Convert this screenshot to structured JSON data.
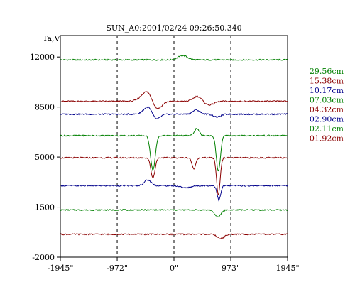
{
  "chart_data": {
    "type": "line",
    "title": "SUN_A0:2001/02/24 09:26:50.340",
    "ylabel": "Ta,V",
    "xlabel": "",
    "xlim": [
      -1945,
      1945
    ],
    "ylim": [
      -2000,
      13500
    ],
    "x_ticks": [
      -1945,
      -972,
      0,
      973,
      1945
    ],
    "x_tick_labels": [
      "-1945\"",
      "-972\"",
      "0\"",
      "973\"",
      "1945\""
    ],
    "y_ticks": [
      12000,
      8500,
      5000,
      1500,
      -2000
    ],
    "y_tick_labels": [
      "12000",
      "8500",
      "5000",
      "1500",
      "-2000"
    ],
    "vertical_guides": [
      -972,
      0,
      973
    ],
    "grid": false,
    "legend_position": "right",
    "series": [
      {
        "name": "29.56cm",
        "color": "#008000",
        "baseline": 11800,
        "features": [
          {
            "x": 150,
            "amp": 300,
            "width": 80
          }
        ]
      },
      {
        "name": "15.38cm",
        "color": "#8b0000",
        "baseline": 8900,
        "features": [
          {
            "x": -450,
            "amp": 750,
            "width": 100
          },
          {
            "x": -300,
            "amp": -700,
            "width": 80
          },
          {
            "x": 400,
            "amp": 350,
            "width": 70
          },
          {
            "x": 600,
            "amp": -250,
            "width": 80
          }
        ]
      },
      {
        "name": "10.17cm",
        "color": "#00008b",
        "baseline": 8000,
        "features": [
          {
            "x": -430,
            "amp": 600,
            "width": 80
          },
          {
            "x": -320,
            "amp": -500,
            "width": 70
          },
          {
            "x": 380,
            "amp": 300,
            "width": 60
          },
          {
            "x": 740,
            "amp": -200,
            "width": 60
          }
        ]
      },
      {
        "name": "07.03cm",
        "color": "#008000",
        "baseline": 6500,
        "features": [
          {
            "x": -360,
            "amp": -2400,
            "width": 40
          },
          {
            "x": 390,
            "amp": 500,
            "width": 40
          },
          {
            "x": 760,
            "amp": -2500,
            "width": 35
          }
        ]
      },
      {
        "name": "04.32cm",
        "color": "#8b0000",
        "baseline": 4950,
        "features": [
          {
            "x": -360,
            "amp": -1400,
            "width": 35
          },
          {
            "x": 340,
            "amp": -800,
            "width": 30
          },
          {
            "x": 760,
            "amp": -2600,
            "width": 30
          }
        ]
      },
      {
        "name": "02.90cm",
        "color": "#00008b",
        "baseline": 3000,
        "features": [
          {
            "x": -450,
            "amp": 400,
            "width": 60
          },
          {
            "x": 770,
            "amp": -1000,
            "width": 30
          },
          {
            "x": 200,
            "amp": -150,
            "width": 80
          }
        ]
      },
      {
        "name": "02.11cm",
        "color": "#008000",
        "baseline": 1300,
        "features": [
          {
            "x": 750,
            "amp": -500,
            "width": 50
          }
        ]
      },
      {
        "name": "01.92cm",
        "color": "#8b0000",
        "baseline": -400,
        "features": [
          {
            "x": 800,
            "amp": -300,
            "width": 60
          }
        ]
      }
    ]
  }
}
